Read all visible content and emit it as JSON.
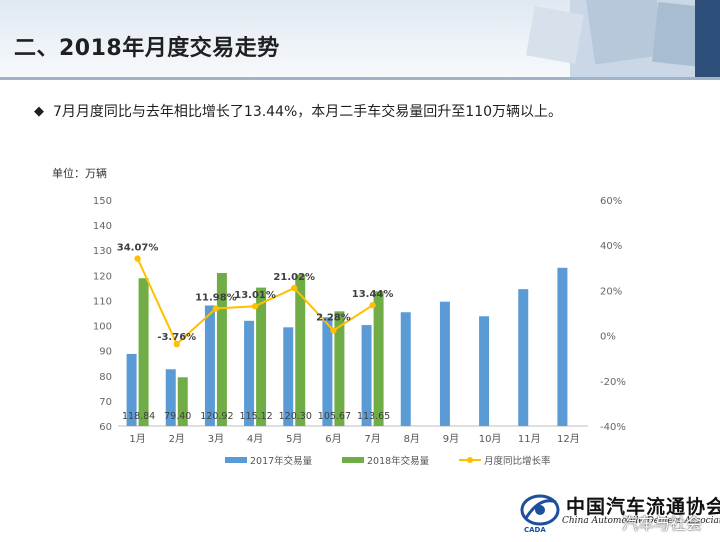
{
  "page": {
    "title": "二、2018年月度交易走势",
    "bullet": "7月月度同比与去年相比增长了13.44%，本月二手车交易量回升至110万辆以上。",
    "unit": "单位：万辆"
  },
  "logo": {
    "org_name_cn": "中国汽车流通协会",
    "org_name_en": "China Automobile Dealers Association",
    "abbr": "CADA",
    "watermark": "汽车与社会"
  },
  "chart_data": {
    "type": "bar",
    "categories": [
      "1月",
      "2月",
      "3月",
      "4月",
      "5月",
      "6月",
      "7月",
      "8月",
      "9月",
      "10月",
      "11月",
      "12月"
    ],
    "series": [
      {
        "name": "2017年交易量",
        "kind": "bar",
        "axis": "left",
        "color": "#5b9bd5",
        "values": [
          88.7,
          82.6,
          108.0,
          101.9,
          99.3,
          103.3,
          100.2,
          105.3,
          109.5,
          103.7,
          114.5,
          123.0
        ]
      },
      {
        "name": "2018年交易量",
        "kind": "bar",
        "axis": "left",
        "color": "#70ad47",
        "values": [
          118.84,
          79.4,
          120.92,
          115.12,
          120.3,
          105.67,
          113.65,
          null,
          null,
          null,
          null,
          null
        ],
        "value_labels": [
          "118.84",
          "79.40",
          "120.92",
          "115.12",
          "120.30",
          "105.67",
          "113.65"
        ]
      },
      {
        "name": "月度同比增长率",
        "kind": "line",
        "axis": "right",
        "color": "#ffc000",
        "values": [
          34.07,
          -3.76,
          11.98,
          13.01,
          21.02,
          2.28,
          13.44,
          null,
          null,
          null,
          null,
          null
        ],
        "value_labels": [
          "34.07%",
          "-3.76%",
          "11.98%",
          "13.01%",
          "21.02%",
          "2.28%",
          "13.44%"
        ]
      }
    ],
    "y_left": {
      "min": 60,
      "max": 150,
      "ticks": [
        "60",
        "70",
        "80",
        "90",
        "100",
        "110",
        "120",
        "130",
        "140",
        "150"
      ]
    },
    "y_right": {
      "min": -40,
      "max": 60,
      "ticks": [
        "-40%",
        "-20%",
        "0%",
        "20%",
        "40%",
        "60%"
      ]
    },
    "grid": false,
    "legend_position": "bottom"
  }
}
